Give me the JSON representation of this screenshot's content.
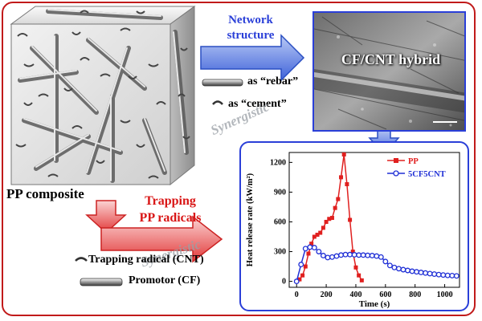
{
  "labels": {
    "network_structure": [
      "Network",
      "structure"
    ],
    "rebar": "as “rebar”",
    "cement": "as “cement”",
    "sem_title": "CF/CNT hybrid",
    "synergistic_1": "Synergistic",
    "synergistic_2": "Synergistic",
    "pp_composite": "PP composite",
    "trapping": [
      "Trapping",
      "PP radicals"
    ],
    "trapping_radical": "Trapping radical (CNT)",
    "promotor": "Promotor (CF)"
  },
  "colors": {
    "frame": "#c11a1a",
    "blue_text": "#2a3fd8",
    "red_text": "#d91616",
    "pp_series": "#e0201f",
    "cnt_series": "#1f2fd6"
  },
  "chart_data": {
    "type": "line",
    "xlabel": "Time (s)",
    "ylabel": "Heat release rate (kW/m²)",
    "xlim": [
      -50,
      1100
    ],
    "ylim": [
      -60,
      1300
    ],
    "xticks": [
      0,
      200,
      400,
      600,
      800,
      1000
    ],
    "yticks": [
      0,
      300,
      600,
      900,
      1200
    ],
    "legend": "top-right",
    "series": [
      {
        "name": "PP",
        "color": "#e0201f",
        "marker": "square",
        "x": [
          0,
          20,
          40,
          60,
          80,
          100,
          120,
          140,
          160,
          180,
          200,
          220,
          240,
          260,
          280,
          300,
          320,
          340,
          360,
          380,
          400,
          420,
          440
        ],
        "y": [
          0,
          20,
          60,
          150,
          280,
          380,
          450,
          470,
          490,
          540,
          600,
          630,
          640,
          740,
          830,
          1050,
          1280,
          980,
          620,
          300,
          140,
          60,
          10
        ]
      },
      {
        "name": "5CF5CNT",
        "color": "#1f2fd6",
        "marker": "circle",
        "x": [
          0,
          30,
          60,
          90,
          120,
          150,
          180,
          210,
          240,
          270,
          300,
          330,
          360,
          390,
          420,
          450,
          480,
          510,
          540,
          570,
          600,
          630,
          660,
          690,
          720,
          750,
          780,
          810,
          840,
          870,
          900,
          930,
          960,
          990,
          1020,
          1050,
          1080
        ],
        "y": [
          0,
          170,
          330,
          345,
          340,
          300,
          260,
          240,
          245,
          255,
          265,
          270,
          270,
          268,
          265,
          265,
          262,
          260,
          255,
          245,
          200,
          160,
          140,
          128,
          118,
          110,
          102,
          96,
          90,
          84,
          78,
          73,
          68,
          64,
          60,
          58,
          55
        ]
      }
    ]
  }
}
